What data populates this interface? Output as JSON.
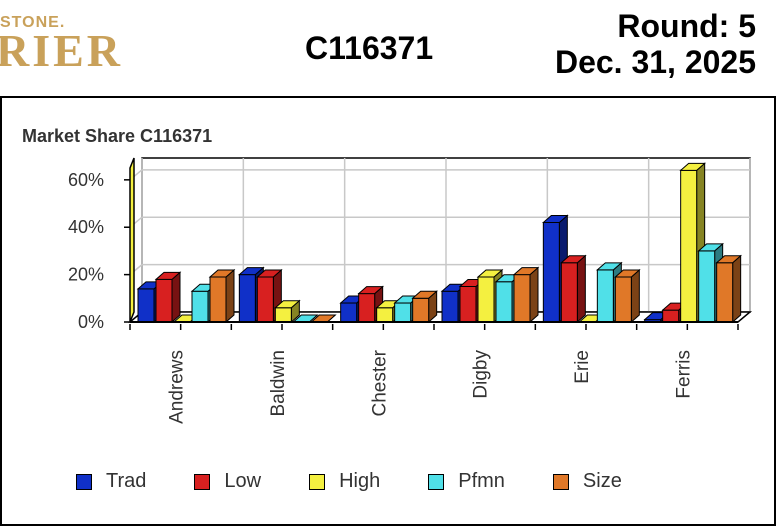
{
  "header": {
    "logo_small": "STONE.",
    "logo_big": "RIER",
    "code": "C116371",
    "round": "Round: 5",
    "date": "Dec. 31, 2025"
  },
  "chart_data": {
    "type": "bar",
    "title": "Market Share  C116371",
    "categories": [
      "Andrews",
      "Baldwin",
      "Chester",
      "Digby",
      "Erie",
      "Ferris"
    ],
    "ylim": [
      0,
      65
    ],
    "yticks": [
      "0%",
      "20%",
      "40%",
      "60%"
    ],
    "ytick_values": [
      0,
      20,
      40,
      60
    ],
    "grid": true,
    "legend_position": "bottom",
    "series": [
      {
        "name": "Trad",
        "color": "#1030c8",
        "values": [
          14,
          20,
          8,
          13,
          42,
          1
        ]
      },
      {
        "name": "Low",
        "color": "#d82020",
        "values": [
          18,
          19,
          12,
          15,
          25,
          5
        ]
      },
      {
        "name": "High",
        "color": "#f4f040",
        "values": [
          0,
          6,
          6,
          19,
          0,
          64
        ]
      },
      {
        "name": "Pfmn",
        "color": "#50e0e8",
        "values": [
          13,
          0,
          8,
          17,
          22,
          30
        ]
      },
      {
        "name": "Size",
        "color": "#e07828",
        "values": [
          19,
          0,
          10,
          20,
          19,
          25
        ]
      }
    ]
  }
}
